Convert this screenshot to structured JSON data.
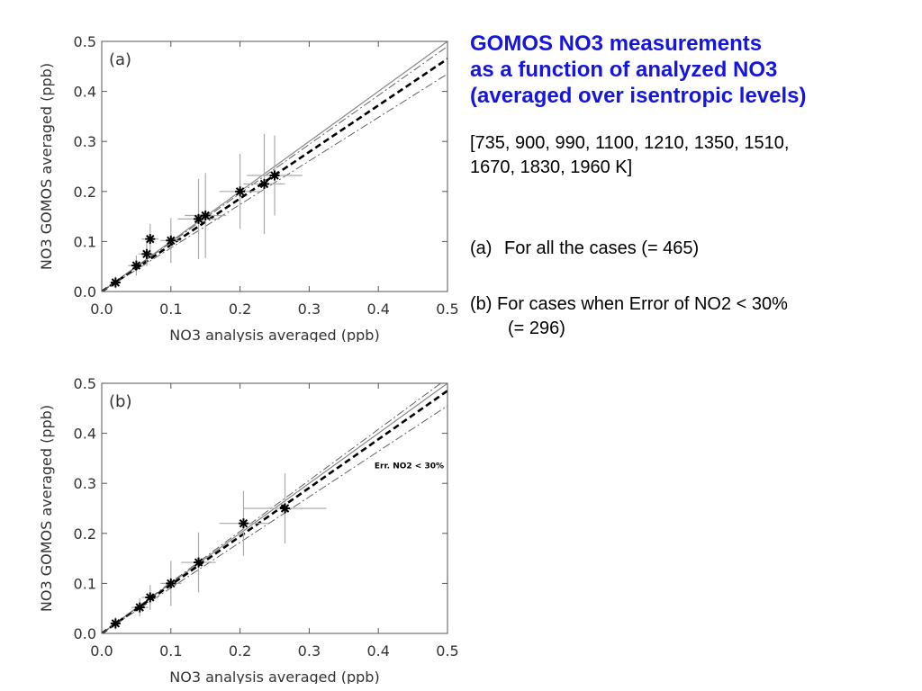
{
  "chart_data": [
    {
      "type": "scatter",
      "panel_label": "(a)",
      "xlabel": "NO3 analysis averaged (ppb)",
      "ylabel": "NO3 GOMOS averaged (ppb)",
      "xlim": [
        0.0,
        0.5
      ],
      "ylim": [
        0.0,
        0.5
      ],
      "x_ticks": [
        "0.0",
        "0.1",
        "0.2",
        "0.3",
        "0.4",
        "0.5"
      ],
      "y_ticks": [
        "0.0",
        "0.1",
        "0.2",
        "0.3",
        "0.4",
        "0.5"
      ],
      "annotation": "",
      "points": [
        {
          "x": 0.02,
          "y": 0.018,
          "xerr": 0.005,
          "yerr": 0.012
        },
        {
          "x": 0.05,
          "y": 0.052,
          "xerr": 0.012,
          "yerr": 0.02
        },
        {
          "x": 0.065,
          "y": 0.075,
          "xerr": 0.012,
          "yerr": 0.025
        },
        {
          "x": 0.07,
          "y": 0.105,
          "xerr": 0.012,
          "yerr": 0.03
        },
        {
          "x": 0.1,
          "y": 0.102,
          "xerr": 0.015,
          "yerr": 0.045
        },
        {
          "x": 0.14,
          "y": 0.145,
          "xerr": 0.03,
          "yerr": 0.08
        },
        {
          "x": 0.15,
          "y": 0.152,
          "xerr": 0.03,
          "yerr": 0.085
        },
        {
          "x": 0.2,
          "y": 0.2,
          "xerr": 0.03,
          "yerr": 0.075
        },
        {
          "x": 0.235,
          "y": 0.215,
          "xerr": 0.03,
          "yerr": 0.1
        },
        {
          "x": 0.25,
          "y": 0.232,
          "xerr": 0.04,
          "yerr": 0.08
        }
      ],
      "lines": [
        {
          "style": "solid",
          "slope": 1.0
        },
        {
          "style": "dashed",
          "slope": 0.93
        },
        {
          "style": "dashdot",
          "slope": 0.98
        },
        {
          "style": "dashdot",
          "slope": 0.87
        }
      ]
    },
    {
      "type": "scatter",
      "panel_label": "(b)",
      "xlabel": "NO3 analysis averaged (ppb)",
      "ylabel": "NO3 GOMOS averaged (ppb)",
      "xlim": [
        0.0,
        0.5
      ],
      "ylim": [
        0.0,
        0.5
      ],
      "x_ticks": [
        "0.0",
        "0.1",
        "0.2",
        "0.3",
        "0.4",
        "0.5"
      ],
      "y_ticks": [
        "0.0",
        "0.1",
        "0.2",
        "0.3",
        "0.4",
        "0.5"
      ],
      "annotation": "Err. NO2  < 30%",
      "points": [
        {
          "x": 0.02,
          "y": 0.02,
          "xerr": 0.006,
          "yerr": 0.012
        },
        {
          "x": 0.055,
          "y": 0.052,
          "xerr": 0.012,
          "yerr": 0.018
        },
        {
          "x": 0.07,
          "y": 0.072,
          "xerr": 0.012,
          "yerr": 0.025
        },
        {
          "x": 0.1,
          "y": 0.1,
          "xerr": 0.015,
          "yerr": 0.045
        },
        {
          "x": 0.14,
          "y": 0.142,
          "xerr": 0.025,
          "yerr": 0.06
        },
        {
          "x": 0.205,
          "y": 0.22,
          "xerr": 0.035,
          "yerr": 0.065
        },
        {
          "x": 0.265,
          "y": 0.25,
          "xerr": 0.06,
          "yerr": 0.07
        }
      ],
      "lines": [
        {
          "style": "solid",
          "slope": 1.0
        },
        {
          "style": "dashed",
          "slope": 0.97
        },
        {
          "style": "dashdot",
          "slope": 1.02
        },
        {
          "style": "dashdot",
          "slope": 0.91
        }
      ]
    }
  ],
  "text": {
    "title_line1": "GOMOS NO3 measurements",
    "title_line2": "as a function of analyzed NO3",
    "title_line3": "(averaged over isentropic levels)",
    "levels_line1": "[735, 900, 990, 1100, 1210, 1350, 1510,",
    "levels_line2": "1670, 1830, 1960 K]",
    "case_a_label": "(a)",
    "case_a_text": "For all the cases (= 465)",
    "case_b_line1": "(b) For cases when Error of NO2 < 30%",
    "case_b_line2": "(= 296)"
  }
}
